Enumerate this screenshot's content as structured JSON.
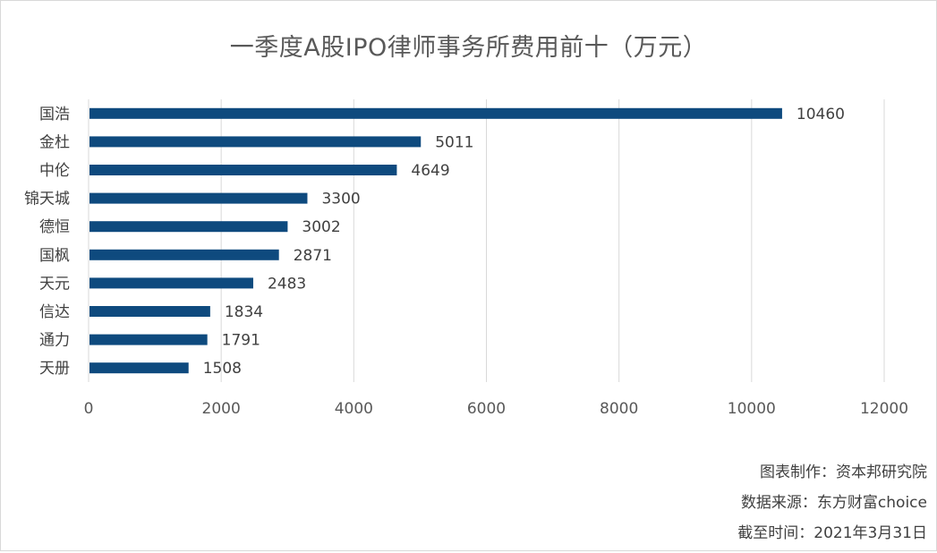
{
  "chart_data": {
    "type": "bar",
    "orientation": "horizontal",
    "title": "一季度A股IPO律师事务所费用前十（万元）",
    "categories": [
      "国浩",
      "金杜",
      "中伦",
      "锦天城",
      "德恒",
      "国枫",
      "天元",
      "信达",
      "通力",
      "天册"
    ],
    "values": [
      10460,
      5011,
      4649,
      3300,
      3002,
      2871,
      2483,
      1834,
      1791,
      1508
    ],
    "xlim": [
      0,
      12000
    ],
    "xticks": [
      0,
      2000,
      4000,
      6000,
      8000,
      10000,
      12000
    ],
    "xlabel": "",
    "ylabel": "",
    "grid": true,
    "bar_color": "#0e4a7e"
  },
  "footnotes": {
    "maker": "图表制作：资本邦研究院",
    "source": "数据来源：东方财富choice",
    "cutoff": "截至时间：2021年3月31日"
  }
}
